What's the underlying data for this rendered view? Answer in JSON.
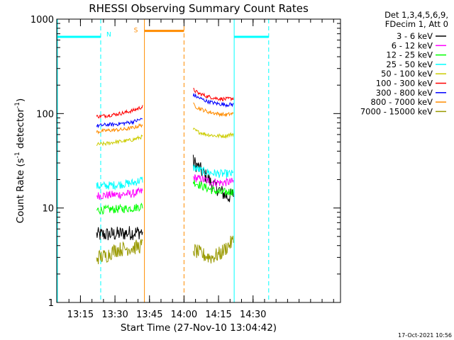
{
  "chart_data": {
    "type": "line",
    "title": "RHESSI Observing Summary Count Rates",
    "xlabel": "Start Time (27-Nov-10 13:04:42)",
    "ylabel_prefix": "Count Rate (s",
    "ylabel_sup": "-1",
    "ylabel_mid": " detector",
    "ylabel_end": ")",
    "ylabel": "Count Rate (s-1 detector-1)",
    "yscale": "log",
    "ylim": [
      1,
      1000
    ],
    "xlim_min": [
      784.7,
      908
    ],
    "xticks": [
      {
        "min": 795,
        "label": "13:15"
      },
      {
        "min": 810,
        "label": "13:30"
      },
      {
        "min": 825,
        "label": "13:45"
      },
      {
        "min": 840,
        "label": "14:00"
      },
      {
        "min": 855,
        "label": "14:15"
      },
      {
        "min": 870,
        "label": "14:30"
      }
    ],
    "yticks": [
      {
        "value": 1,
        "label": "1"
      },
      {
        "value": 10,
        "label": "10"
      },
      {
        "value": 100,
        "label": "100"
      },
      {
        "value": 1000,
        "label": "1000"
      }
    ],
    "legend_header": [
      "Det 1,3,4,5,6,9,",
      "FDecim 1, Att 0"
    ],
    "series": [
      {
        "name": "3 - 6 keV",
        "color": "#000000",
        "seg1": [
          [
            802.0,
            5.2
          ],
          [
            810.0,
            5.3
          ],
          [
            818.0,
            5.5
          ],
          [
            822.0,
            5.6
          ]
        ],
        "seg2": [
          [
            844.0,
            31
          ],
          [
            848.0,
            24
          ],
          [
            852.0,
            18
          ],
          [
            856.0,
            15
          ],
          [
            859.0,
            13
          ],
          [
            861.5,
            14
          ]
        ]
      },
      {
        "name": "6 - 12 keV",
        "color": "#ff00ff",
        "seg1": [
          [
            802.0,
            13.5
          ],
          [
            810.0,
            13.8
          ],
          [
            818.0,
            14.2
          ],
          [
            822.0,
            15.0
          ]
        ],
        "seg2": [
          [
            844.0,
            21
          ],
          [
            848.0,
            20
          ],
          [
            852.0,
            19
          ],
          [
            856.0,
            18.5
          ],
          [
            861.5,
            19
          ]
        ]
      },
      {
        "name": "12 - 25 keV",
        "color": "#00ff00",
        "seg1": [
          [
            802.0,
            9.5
          ],
          [
            810.0,
            9.7
          ],
          [
            818.0,
            10.0
          ],
          [
            822.0,
            10.5
          ]
        ],
        "seg2": [
          [
            844.0,
            19
          ],
          [
            848.0,
            17
          ],
          [
            852.0,
            15.5
          ],
          [
            856.0,
            14.5
          ],
          [
            861.5,
            15
          ]
        ]
      },
      {
        "name": "25 - 50 keV",
        "color": "#00ffff",
        "seg1": [
          [
            802.0,
            17
          ],
          [
            810.0,
            17.5
          ],
          [
            818.0,
            18.5
          ],
          [
            822.0,
            20
          ]
        ],
        "seg2": [
          [
            844.0,
            27
          ],
          [
            848.0,
            24.5
          ],
          [
            852.0,
            23.5
          ],
          [
            856.0,
            23
          ],
          [
            861.5,
            23
          ]
        ]
      },
      {
        "name": "50 - 100 keV",
        "color": "#cccc00",
        "seg1": [
          [
            802.0,
            47
          ],
          [
            806.0,
            48
          ],
          [
            810.0,
            50
          ],
          [
            814.0,
            51
          ],
          [
            818.0,
            53
          ],
          [
            822.0,
            57
          ]
        ],
        "seg2": [
          [
            844.0,
            68
          ],
          [
            846.0,
            64
          ],
          [
            850.0,
            60
          ],
          [
            854.0,
            58
          ],
          [
            858.0,
            58
          ],
          [
            861.5,
            61
          ]
        ]
      },
      {
        "name": "100 - 300 keV",
        "color": "#ff0000",
        "seg1": [
          [
            802.0,
            93
          ],
          [
            806.0,
            95
          ],
          [
            810.0,
            98
          ],
          [
            814.0,
            102
          ],
          [
            818.0,
            108
          ],
          [
            822.0,
            118
          ]
        ],
        "seg2": [
          [
            844.0,
            180
          ],
          [
            846.0,
            165
          ],
          [
            850.0,
            152
          ],
          [
            854.0,
            145
          ],
          [
            858.0,
            142
          ],
          [
            861.5,
            145
          ]
        ]
      },
      {
        "name": "300 - 800 keV",
        "color": "#0000ff",
        "seg1": [
          [
            802.0,
            74
          ],
          [
            806.0,
            76
          ],
          [
            810.0,
            77
          ],
          [
            814.0,
            79
          ],
          [
            818.0,
            82
          ],
          [
            822.0,
            88
          ]
        ],
        "seg2": [
          [
            844.0,
            158
          ],
          [
            846.0,
            148
          ],
          [
            850.0,
            135
          ],
          [
            854.0,
            128
          ],
          [
            858.0,
            124
          ],
          [
            861.5,
            125
          ]
        ]
      },
      {
        "name": "800 - 7000 keV",
        "color": "#ff8c00",
        "seg1": [
          [
            802.0,
            64
          ],
          [
            806.0,
            66
          ],
          [
            810.0,
            67
          ],
          [
            814.0,
            68
          ],
          [
            818.0,
            71
          ],
          [
            822.0,
            76
          ]
        ],
        "seg2": [
          [
            844.0,
            125
          ],
          [
            846.0,
            115
          ],
          [
            850.0,
            105
          ],
          [
            854.0,
            100
          ],
          [
            858.0,
            97
          ],
          [
            861.5,
            100
          ]
        ]
      },
      {
        "name": "7000 - 15000 keV",
        "color": "#999900",
        "seg1": [
          [
            802.0,
            3.0
          ],
          [
            806.0,
            3.1
          ],
          [
            810.0,
            3.6
          ],
          [
            814.0,
            3.7
          ],
          [
            818.0,
            3.8
          ],
          [
            822.0,
            4.0
          ]
        ],
        "seg2": [
          [
            844.0,
            3.6
          ],
          [
            848.0,
            3.2
          ],
          [
            852.0,
            3.0
          ],
          [
            856.0,
            3.3
          ],
          [
            861.5,
            4.5
          ]
        ]
      }
    ],
    "night_bars": [
      {
        "label": "N",
        "start": 784.7,
        "end": 803.8,
        "value": 650
      },
      {
        "label": "",
        "start": 861.8,
        "end": 876.8,
        "value": 650
      }
    ],
    "saa_bars": [
      {
        "label": "S",
        "start": 822.8,
        "end": 840.0,
        "value": 750
      }
    ],
    "markers": [
      {
        "min": 785.0,
        "style": "solid",
        "color": "#00ffff"
      },
      {
        "min": 803.8,
        "style": "dash",
        "color": "#00ffff"
      },
      {
        "min": 822.8,
        "style": "solid",
        "color": "#ff8c00"
      },
      {
        "min": 840.0,
        "style": "dash",
        "color": "#ff8c00"
      },
      {
        "min": 861.8,
        "style": "solid",
        "color": "#00ffff"
      },
      {
        "min": 876.8,
        "style": "dash",
        "color": "#00ffff"
      }
    ],
    "timestamp": "17-Oct-2021 10:56"
  }
}
